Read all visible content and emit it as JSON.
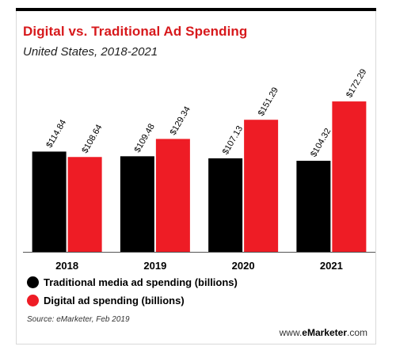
{
  "title": "Digital vs. Traditional Ad Spending",
  "subtitle": "United States, 2018-2021",
  "source": "Source: eMarketer, Feb 2019",
  "brand": {
    "prefix": "www.",
    "name": "eMarketer",
    "suffix": ".com"
  },
  "colors": {
    "traditional": "#000000",
    "digital": "#ee1c25",
    "title": "#d7191c"
  },
  "chart_data": {
    "type": "bar",
    "title": "Digital vs. Traditional Ad Spending",
    "subtitle": "United States, 2018-2021",
    "categories": [
      "2018",
      "2019",
      "2020",
      "2021"
    ],
    "series": [
      {
        "name": "Traditional media ad spending (billions)",
        "values": [
          114.84,
          109.48,
          107.13,
          104.32
        ],
        "labels": [
          "$114.84",
          "$109.48",
          "$107.13",
          "$104.32"
        ],
        "color": "#000000"
      },
      {
        "name": "Digital ad spending (billions)",
        "values": [
          108.64,
          129.34,
          151.29,
          172.29
        ],
        "labels": [
          "$108.64",
          "$129.34",
          "$151.29",
          "$172.29"
        ],
        "color": "#ee1c25"
      }
    ],
    "ylim": [
      0,
      180
    ],
    "grid": false,
    "legend_position": "bottom-left"
  }
}
